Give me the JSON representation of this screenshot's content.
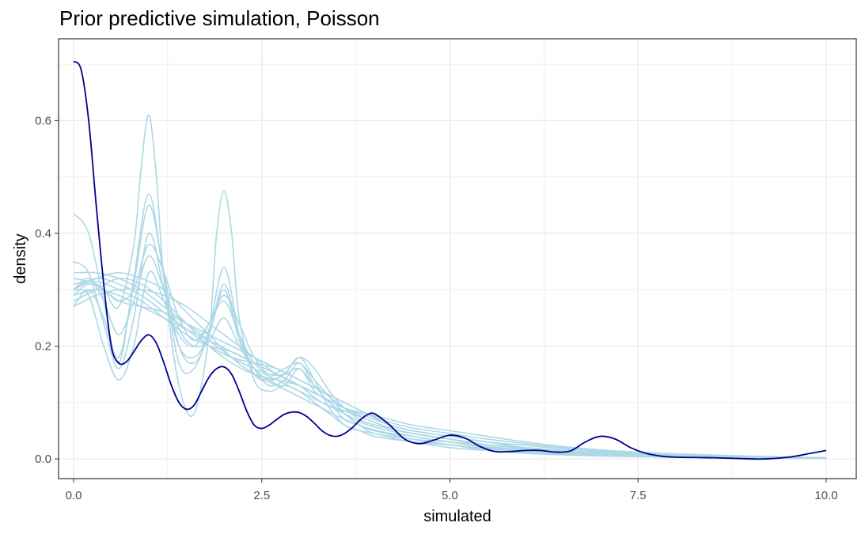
{
  "chart_data": {
    "type": "line",
    "title": "Prior predictive simulation, Poisson",
    "xlabel": "simulated",
    "ylabel": "density",
    "xlim": [
      -0.2,
      10.4
    ],
    "ylim": [
      -0.035,
      0.745
    ],
    "x_ticks": [
      0,
      2.5,
      5,
      7.5,
      10
    ],
    "x_tick_labels": [
      "0.0",
      "2.5",
      "5.0",
      "7.5",
      "10.0"
    ],
    "y_ticks": [
      0,
      0.2,
      0.4,
      0.6
    ],
    "y_tick_labels": [
      "0.0",
      "0.2",
      "0.4",
      "0.6"
    ],
    "grid": true,
    "colors": {
      "observed": "#00008b",
      "simulated": "#add8e6",
      "grid": "#ebebeb",
      "panel_border": "#333333"
    },
    "series": [
      {
        "role": "observed",
        "x": [
          0,
          0.1,
          0.2,
          0.3,
          0.4,
          0.5,
          0.6,
          0.7,
          0.8,
          0.9,
          1,
          1.1,
          1.2,
          1.3,
          1.4,
          1.5,
          1.6,
          1.7,
          1.8,
          1.9,
          2,
          2.1,
          2.2,
          2.3,
          2.4,
          2.5,
          2.6,
          2.7,
          2.8,
          2.9,
          3,
          3.1,
          3.2,
          3.3,
          3.4,
          3.5,
          3.6,
          3.7,
          3.8,
          3.9,
          4,
          4.2,
          4.4,
          4.6,
          4.8,
          5,
          5.2,
          5.4,
          5.6,
          5.8,
          6,
          6.2,
          6.4,
          6.6,
          6.8,
          7,
          7.2,
          7.4,
          7.6,
          7.8,
          8,
          8.5,
          9,
          9.2,
          9.5,
          9.8,
          10
        ],
        "y": [
          0.705,
          0.69,
          0.6,
          0.45,
          0.31,
          0.2,
          0.17,
          0.172,
          0.19,
          0.21,
          0.22,
          0.205,
          0.17,
          0.13,
          0.1,
          0.088,
          0.095,
          0.12,
          0.145,
          0.16,
          0.163,
          0.15,
          0.12,
          0.085,
          0.06,
          0.054,
          0.06,
          0.07,
          0.079,
          0.083,
          0.082,
          0.075,
          0.063,
          0.05,
          0.042,
          0.04,
          0.045,
          0.055,
          0.068,
          0.078,
          0.08,
          0.06,
          0.035,
          0.027,
          0.034,
          0.042,
          0.037,
          0.022,
          0.013,
          0.013,
          0.015,
          0.015,
          0.012,
          0.014,
          0.03,
          0.04,
          0.035,
          0.02,
          0.01,
          0.005,
          0.003,
          0.002,
          0.0,
          0.0,
          0.003,
          0.01,
          0.015
        ]
      },
      {
        "role": "simulated",
        "x": [
          0,
          0.2,
          0.4,
          0.6,
          0.8,
          0.9,
          1,
          1.1,
          1.2,
          1.4,
          1.6,
          1.8,
          1.9,
          2,
          2.1,
          2.2,
          2.4,
          2.6,
          2.8,
          3,
          3.2,
          3.4,
          3.6,
          3.8,
          4,
          4.5,
          5,
          5.5,
          6,
          6.5,
          7,
          8,
          9,
          10
        ],
        "y": [
          0.3,
          0.315,
          0.3,
          0.27,
          0.38,
          0.52,
          0.61,
          0.5,
          0.32,
          0.13,
          0.08,
          0.22,
          0.4,
          0.475,
          0.4,
          0.25,
          0.14,
          0.12,
          0.13,
          0.12,
          0.1,
          0.08,
          0.06,
          0.05,
          0.04,
          0.03,
          0.02,
          0.015,
          0.01,
          0.008,
          0.006,
          0.004,
          0.002,
          0.001
        ]
      },
      {
        "role": "simulated",
        "x": [
          0,
          0.2,
          0.4,
          0.6,
          0.8,
          1,
          1.2,
          1.4,
          1.6,
          1.8,
          2,
          2.2,
          2.4,
          2.6,
          2.8,
          3,
          3.2,
          3.4,
          3.6,
          3.8,
          4,
          4.5,
          5,
          5.5,
          6,
          6.5,
          7,
          8,
          9,
          10
        ],
        "y": [
          0.435,
          0.4,
          0.28,
          0.17,
          0.32,
          0.47,
          0.32,
          0.17,
          0.16,
          0.23,
          0.34,
          0.22,
          0.15,
          0.14,
          0.15,
          0.18,
          0.14,
          0.09,
          0.06,
          0.05,
          0.045,
          0.03,
          0.025,
          0.015,
          0.01,
          0.007,
          0.005,
          0.003,
          0.002,
          0.001
        ]
      },
      {
        "role": "simulated",
        "x": [
          0,
          0.2,
          0.4,
          0.6,
          0.8,
          1,
          1.2,
          1.4,
          1.6,
          1.8,
          2,
          2.2,
          2.4,
          2.6,
          2.8,
          3,
          3.2,
          3.4,
          3.6,
          3.8,
          4,
          4.5,
          5,
          5.5,
          6,
          6.5,
          7,
          8,
          9,
          10
        ],
        "y": [
          0.27,
          0.3,
          0.25,
          0.18,
          0.31,
          0.45,
          0.33,
          0.2,
          0.17,
          0.22,
          0.31,
          0.22,
          0.16,
          0.13,
          0.14,
          0.17,
          0.13,
          0.1,
          0.08,
          0.06,
          0.05,
          0.035,
          0.03,
          0.02,
          0.015,
          0.012,
          0.01,
          0.006,
          0.003,
          0.001
        ]
      },
      {
        "role": "simulated",
        "x": [
          0,
          0.2,
          0.4,
          0.6,
          0.8,
          1,
          1.2,
          1.4,
          1.6,
          1.8,
          2,
          2.2,
          2.4,
          2.6,
          2.8,
          3,
          3.2,
          3.4,
          3.6,
          3.8,
          4,
          4.5,
          5,
          5.5,
          6,
          6.5,
          7,
          8,
          9,
          10
        ],
        "y": [
          0.35,
          0.33,
          0.24,
          0.16,
          0.25,
          0.4,
          0.3,
          0.2,
          0.18,
          0.22,
          0.3,
          0.21,
          0.16,
          0.14,
          0.13,
          0.16,
          0.12,
          0.1,
          0.07,
          0.06,
          0.05,
          0.04,
          0.03,
          0.02,
          0.015,
          0.01,
          0.008,
          0.005,
          0.002,
          0.001
        ]
      },
      {
        "role": "simulated",
        "x": [
          0,
          0.2,
          0.4,
          0.6,
          0.8,
          1,
          1.2,
          1.4,
          1.6,
          1.8,
          2,
          2.2,
          2.4,
          2.6,
          2.8,
          3,
          3.2,
          3.4,
          3.6,
          3.8,
          4,
          4.5,
          5,
          5.5,
          6,
          6.5,
          7,
          8,
          9,
          10
        ],
        "y": [
          0.29,
          0.31,
          0.3,
          0.28,
          0.3,
          0.38,
          0.33,
          0.25,
          0.21,
          0.24,
          0.28,
          0.22,
          0.17,
          0.15,
          0.15,
          0.16,
          0.13,
          0.11,
          0.09,
          0.07,
          0.06,
          0.045,
          0.035,
          0.025,
          0.02,
          0.015,
          0.012,
          0.007,
          0.003,
          0.001
        ]
      },
      {
        "role": "simulated",
        "x": [
          0,
          0.3,
          0.6,
          0.9,
          1.2,
          1.5,
          1.8,
          2.1,
          2.4,
          2.7,
          3,
          3.3,
          3.6,
          3.9,
          4.2,
          4.5,
          5,
          5.5,
          6,
          6.5,
          7,
          7.5,
          8,
          9,
          10
        ],
        "y": [
          0.3,
          0.32,
          0.31,
          0.29,
          0.26,
          0.23,
          0.2,
          0.18,
          0.17,
          0.16,
          0.14,
          0.12,
          0.1,
          0.08,
          0.06,
          0.05,
          0.04,
          0.03,
          0.02,
          0.015,
          0.01,
          0.008,
          0.006,
          0.003,
          0.001
        ]
      },
      {
        "role": "simulated",
        "x": [
          0,
          0.3,
          0.6,
          0.9,
          1.2,
          1.5,
          1.8,
          2.1,
          2.4,
          2.7,
          3,
          3.3,
          3.6,
          3.9,
          4.2,
          4.5,
          5,
          5.5,
          6,
          6.5,
          7,
          7.5,
          8,
          9,
          10
        ],
        "y": [
          0.28,
          0.3,
          0.32,
          0.31,
          0.28,
          0.24,
          0.2,
          0.17,
          0.15,
          0.14,
          0.13,
          0.11,
          0.09,
          0.07,
          0.055,
          0.045,
          0.035,
          0.025,
          0.02,
          0.015,
          0.012,
          0.01,
          0.008,
          0.004,
          0.002
        ]
      },
      {
        "role": "simulated",
        "x": [
          0,
          0.3,
          0.6,
          0.9,
          1.2,
          1.5,
          1.8,
          2.1,
          2.4,
          2.7,
          3,
          3.3,
          3.6,
          3.9,
          4.2,
          4.5,
          5,
          5.5,
          6,
          6.5,
          7,
          7.5,
          8,
          9,
          10
        ],
        "y": [
          0.31,
          0.315,
          0.3,
          0.28,
          0.25,
          0.22,
          0.2,
          0.19,
          0.17,
          0.15,
          0.13,
          0.1,
          0.085,
          0.07,
          0.055,
          0.045,
          0.035,
          0.02,
          0.015,
          0.012,
          0.01,
          0.008,
          0.006,
          0.003,
          0.001
        ]
      },
      {
        "role": "simulated",
        "x": [
          0,
          0.3,
          0.6,
          0.9,
          1.2,
          1.5,
          1.8,
          2.1,
          2.4,
          2.7,
          3,
          3.3,
          3.6,
          3.9,
          4.2,
          4.5,
          5,
          5.5,
          6,
          6.5,
          7,
          7.5,
          8,
          9,
          10
        ],
        "y": [
          0.33,
          0.33,
          0.32,
          0.3,
          0.27,
          0.24,
          0.21,
          0.18,
          0.16,
          0.14,
          0.12,
          0.1,
          0.08,
          0.06,
          0.05,
          0.04,
          0.03,
          0.022,
          0.016,
          0.012,
          0.009,
          0.007,
          0.005,
          0.003,
          0.001
        ]
      },
      {
        "role": "simulated",
        "x": [
          0,
          0.3,
          0.6,
          0.9,
          1.2,
          1.5,
          1.8,
          2.1,
          2.4,
          2.7,
          3,
          3.3,
          3.6,
          3.9,
          4.2,
          4.5,
          5,
          5.5,
          6,
          6.5,
          7,
          7.5,
          8,
          9,
          10
        ],
        "y": [
          0.29,
          0.3,
          0.29,
          0.27,
          0.25,
          0.23,
          0.21,
          0.19,
          0.17,
          0.15,
          0.13,
          0.11,
          0.09,
          0.075,
          0.06,
          0.05,
          0.04,
          0.03,
          0.024,
          0.018,
          0.014,
          0.01,
          0.008,
          0.004,
          0.002
        ]
      },
      {
        "role": "simulated",
        "x": [
          0,
          0.3,
          0.6,
          0.9,
          1.2,
          1.5,
          1.8,
          2.1,
          2.4,
          2.7,
          3,
          3.3,
          3.6,
          3.9,
          4.2,
          4.5,
          5,
          5.5,
          6,
          6.5,
          7,
          7.5,
          8,
          9,
          10
        ],
        "y": [
          0.3,
          0.32,
          0.33,
          0.32,
          0.3,
          0.26,
          0.22,
          0.18,
          0.15,
          0.13,
          0.11,
          0.09,
          0.07,
          0.055,
          0.045,
          0.035,
          0.025,
          0.018,
          0.013,
          0.01,
          0.008,
          0.006,
          0.004,
          0.002,
          0.001
        ]
      },
      {
        "role": "simulated",
        "x": [
          0,
          0.3,
          0.6,
          0.9,
          1.2,
          1.5,
          1.8,
          2.1,
          2.4,
          2.7,
          3,
          3.3,
          3.6,
          3.9,
          4.2,
          4.5,
          5,
          5.5,
          6,
          6.5,
          7,
          7.5,
          8,
          9,
          10
        ],
        "y": [
          0.32,
          0.31,
          0.28,
          0.27,
          0.26,
          0.24,
          0.22,
          0.2,
          0.18,
          0.16,
          0.14,
          0.12,
          0.1,
          0.08,
          0.065,
          0.055,
          0.045,
          0.035,
          0.027,
          0.02,
          0.015,
          0.011,
          0.008,
          0.004,
          0.002
        ]
      },
      {
        "role": "simulated",
        "x": [
          0,
          0.2,
          0.4,
          0.6,
          0.8,
          1,
          1.2,
          1.4,
          1.6,
          1.8,
          2,
          2.2,
          2.4,
          2.6,
          2.8,
          3,
          3.2,
          3.4,
          3.6,
          3.8,
          4,
          4.5,
          5,
          5.5,
          6,
          6.5,
          7,
          8,
          9,
          10
        ],
        "y": [
          0.3,
          0.29,
          0.2,
          0.14,
          0.2,
          0.33,
          0.28,
          0.22,
          0.2,
          0.24,
          0.29,
          0.24,
          0.18,
          0.15,
          0.16,
          0.17,
          0.14,
          0.11,
          0.08,
          0.06,
          0.045,
          0.035,
          0.025,
          0.018,
          0.012,
          0.009,
          0.007,
          0.004,
          0.002,
          0.001
        ]
      },
      {
        "role": "simulated",
        "x": [
          0,
          0.2,
          0.4,
          0.6,
          0.8,
          1,
          1.2,
          1.4,
          1.6,
          1.8,
          2,
          2.2,
          2.4,
          2.6,
          2.8,
          3,
          3.2,
          3.4,
          3.6,
          3.8,
          4,
          4.5,
          5,
          5.5,
          6,
          6.5,
          7,
          8,
          9,
          10
        ],
        "y": [
          0.3,
          0.32,
          0.28,
          0.22,
          0.28,
          0.36,
          0.3,
          0.23,
          0.2,
          0.21,
          0.25,
          0.2,
          0.16,
          0.14,
          0.15,
          0.18,
          0.16,
          0.12,
          0.09,
          0.07,
          0.06,
          0.045,
          0.035,
          0.025,
          0.018,
          0.013,
          0.01,
          0.006,
          0.003,
          0.001
        ]
      },
      {
        "role": "simulated",
        "x": [
          0,
          0.3,
          0.6,
          0.9,
          1.2,
          1.5,
          1.8,
          2.1,
          2.4,
          2.7,
          3,
          3.3,
          3.6,
          3.9,
          4.2,
          4.5,
          5,
          5.5,
          6,
          6.5,
          7,
          7.5,
          8,
          9,
          10
        ],
        "y": [
          0.27,
          0.29,
          0.3,
          0.3,
          0.29,
          0.27,
          0.24,
          0.21,
          0.18,
          0.15,
          0.13,
          0.11,
          0.09,
          0.08,
          0.07,
          0.06,
          0.05,
          0.04,
          0.03,
          0.022,
          0.016,
          0.012,
          0.009,
          0.005,
          0.002
        ]
      }
    ]
  }
}
